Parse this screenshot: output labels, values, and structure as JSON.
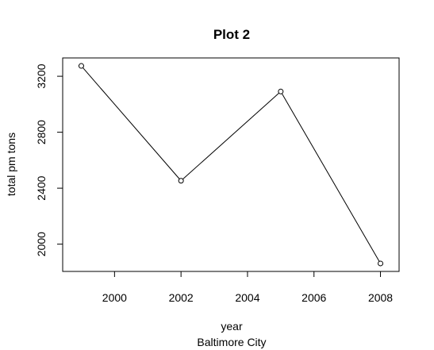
{
  "chart_data": {
    "type": "line",
    "title": "Plot 2",
    "xlabel": "year",
    "xlabel_sub": "Baltimore City",
    "ylabel": "total pm tons",
    "x": [
      1999,
      2002,
      2005,
      2008
    ],
    "series": [
      {
        "values": [
          3274,
          2453,
          3091,
          1862
        ]
      }
    ],
    "xlim": [
      1998.44,
      2008.56
    ],
    "ylim": [
      1805,
      3331
    ],
    "xticks": [
      2000,
      2002,
      2004,
      2006,
      2008
    ],
    "yticks": [
      2000,
      2400,
      2800,
      3200
    ],
    "marker": "open-circle",
    "grid": false,
    "legend": "none",
    "colors": {
      "line": "#000000",
      "axis": "#000000"
    }
  }
}
